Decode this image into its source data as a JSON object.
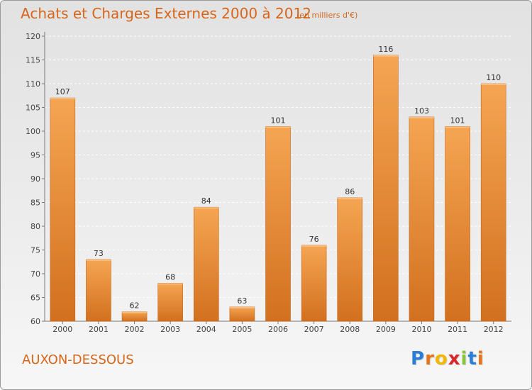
{
  "header": {
    "title": "Achats et Charges Externes 2000 à 2012",
    "units": "(en milliers d'€)"
  },
  "footer": {
    "commune": "AUXON-DESSOUS",
    "logo_letters": [
      "P",
      "r",
      "o",
      "x",
      "i",
      "t",
      "i"
    ],
    "logo_colors": [
      "#2a7fd4",
      "#e8731a",
      "#f2b705",
      "#d9262b",
      "#8ac43f",
      "#2a7fd4",
      "#e8731a"
    ]
  },
  "chart_data": {
    "type": "bar",
    "title": "Achats et Charges Externes 2000 à 2012",
    "xlabel": "",
    "ylabel": "",
    "categories": [
      "2000",
      "2001",
      "2002",
      "2003",
      "2004",
      "2005",
      "2006",
      "2007",
      "2008",
      "2009",
      "2010",
      "2011",
      "2012"
    ],
    "values": [
      107,
      73,
      62,
      68,
      84,
      63,
      101,
      76,
      86,
      116,
      103,
      101,
      110
    ],
    "ylim": [
      60,
      120
    ],
    "yticks": [
      60,
      65,
      70,
      75,
      80,
      85,
      90,
      95,
      100,
      105,
      110,
      115,
      120
    ],
    "grid": true,
    "legend": "none",
    "colors": {
      "bar_top": "#f5a552",
      "bar_bottom": "#d2701f",
      "bar_edge": "#c4661c",
      "grid": "#ffffff",
      "axis": "#777777"
    }
  }
}
